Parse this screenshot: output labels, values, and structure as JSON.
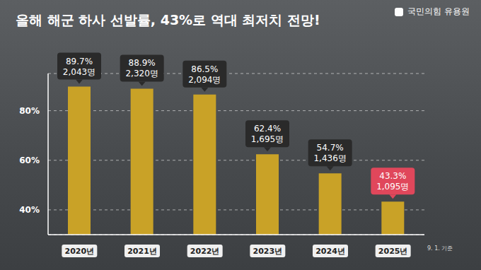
{
  "chart_data": {
    "type": "bar",
    "title": "올해 해군 하사 선발률, 43%로 역대 최저치 전망!",
    "source": "국민의힘 유용원",
    "note": "9. 1. 기준",
    "categories": [
      "2020년",
      "2021년",
      "2022년",
      "2023년",
      "2024년",
      "2025년"
    ],
    "values": [
      89.7,
      88.9,
      86.5,
      62.4,
      54.7,
      43.3
    ],
    "value_labels": [
      "89.7%",
      "88.9%",
      "86.5%",
      "62.4%",
      "54.7%",
      "43.3%"
    ],
    "count_labels": [
      "2,043명",
      "2,320명",
      "2,094명",
      "1,695명",
      "1,436명",
      "1,095명"
    ],
    "color": "#c9a227",
    "ylim": [
      30,
      95
    ],
    "yticks": [
      {
        "value": 40,
        "label": "40%"
      },
      {
        "value": 60,
        "label": "60%"
      },
      {
        "value": 80,
        "label": "80%"
      }
    ],
    "grid": true,
    "data_labels": true
  }
}
